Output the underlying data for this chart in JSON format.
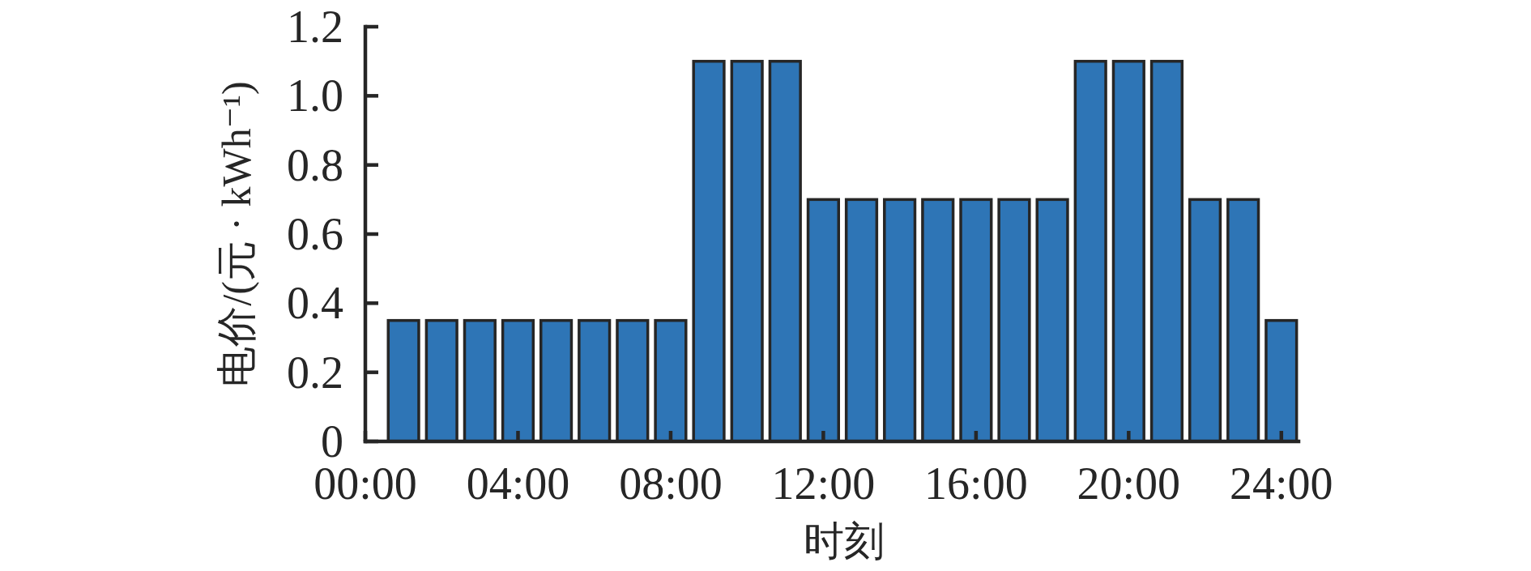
{
  "chart_data": {
    "type": "bar",
    "color": "#2e75b6",
    "x": [
      1,
      2,
      3,
      4,
      5,
      6,
      7,
      8,
      9,
      10,
      11,
      12,
      13,
      14,
      15,
      16,
      17,
      18,
      19,
      20,
      21,
      22,
      23,
      24
    ],
    "values": [
      0.35,
      0.35,
      0.35,
      0.35,
      0.35,
      0.35,
      0.35,
      0.35,
      1.1,
      1.1,
      1.1,
      0.7,
      0.7,
      0.7,
      0.7,
      0.7,
      0.7,
      0.7,
      1.1,
      1.1,
      1.1,
      0.7,
      0.7,
      0.35
    ],
    "xlabel": "时刻",
    "ylabel": "电价/(元 · kWh⁻¹)",
    "xlim": [
      0,
      24.45
    ],
    "ylim": [
      0,
      1.2
    ],
    "xticks": [
      {
        "value": 0,
        "label": "00:00"
      },
      {
        "value": 4,
        "label": "04:00"
      },
      {
        "value": 8,
        "label": "08:00"
      },
      {
        "value": 12,
        "label": "12:00"
      },
      {
        "value": 16,
        "label": "16:00"
      },
      {
        "value": 20,
        "label": "20:00"
      },
      {
        "value": 24,
        "label": "24:00"
      }
    ],
    "yticks": [
      0,
      0.2,
      0.4,
      0.6,
      0.8,
      {
        "value": 1,
        "label": "1.0"
      },
      1.2
    ]
  }
}
